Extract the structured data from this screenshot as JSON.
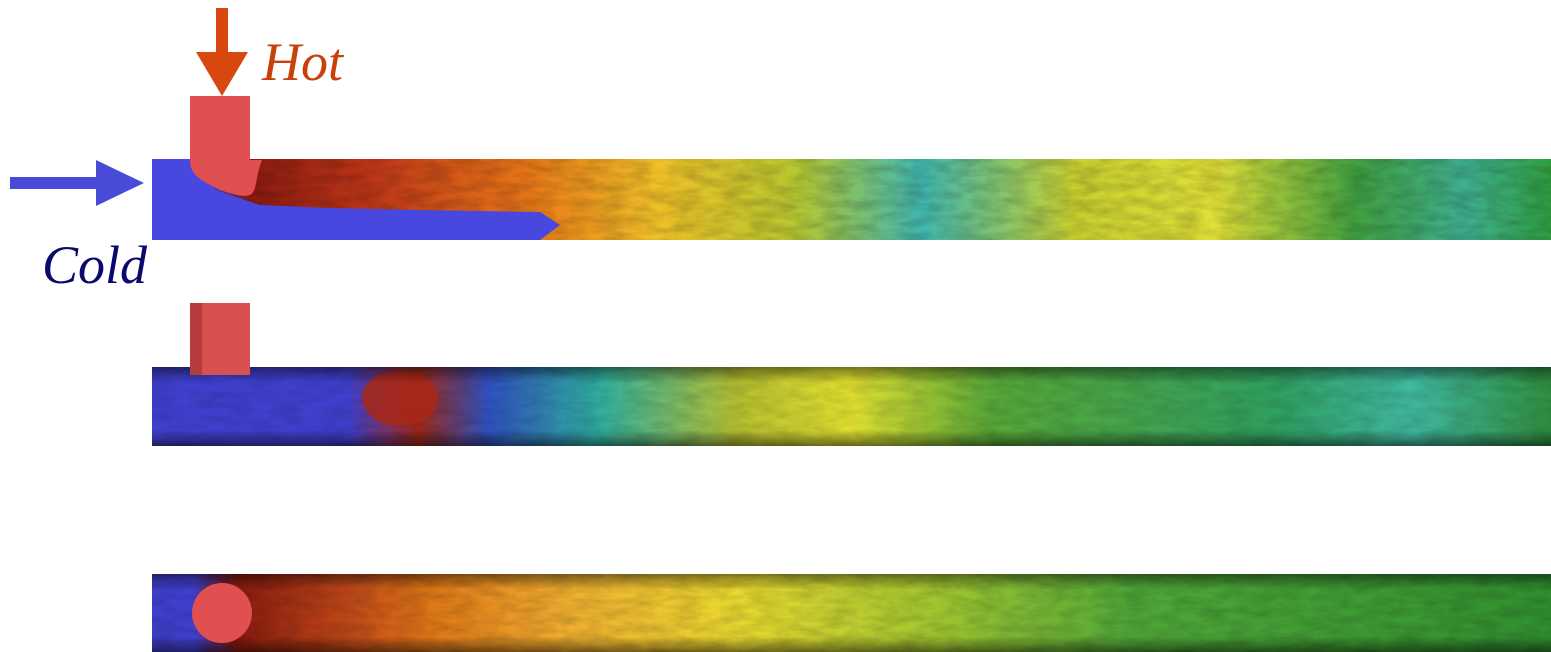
{
  "labels": {
    "hot": "Hot",
    "cold": "Cold"
  }
}
